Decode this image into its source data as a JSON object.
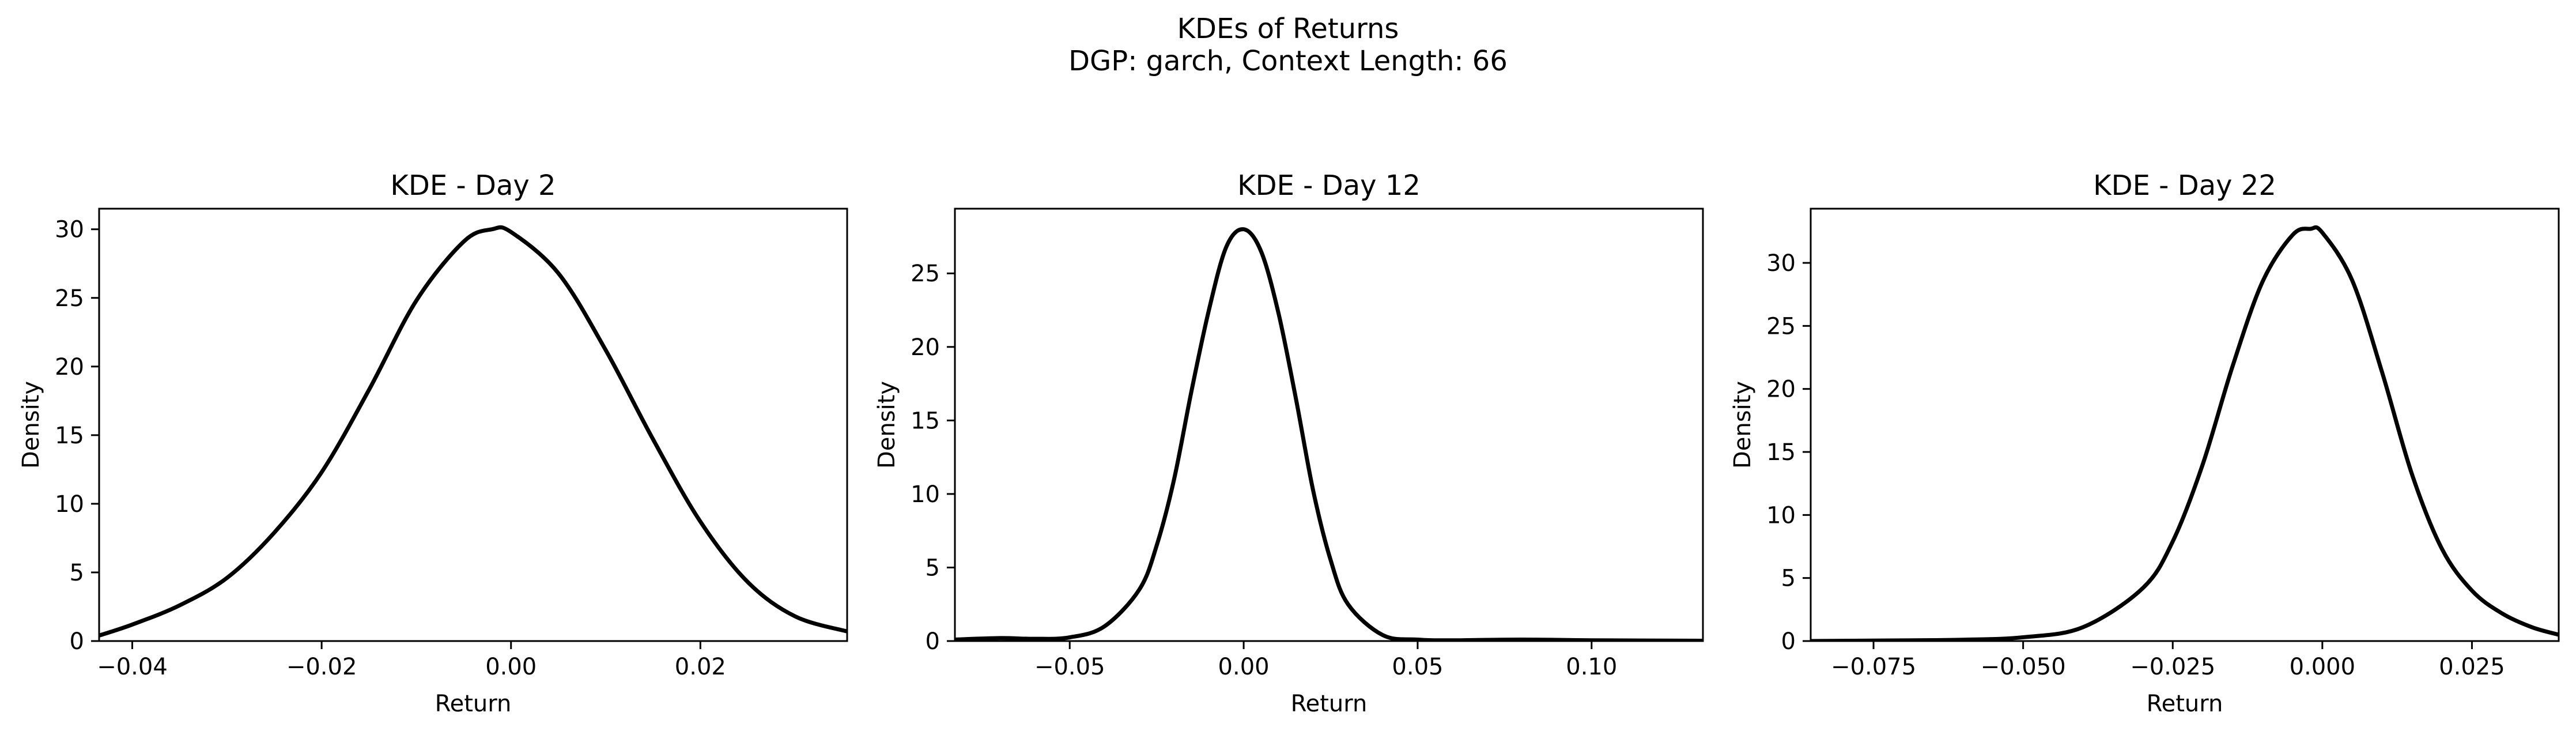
{
  "figure": {
    "title_line1": "KDEs of Returns",
    "title_line2": "DGP: garch, Context Length: 66"
  },
  "chart_data": [
    {
      "type": "line",
      "title": "KDE - Day 2",
      "xlabel": "Return",
      "ylabel": "Density",
      "xlim": [
        -0.0435,
        0.0355
      ],
      "ylim": [
        0,
        31.5
      ],
      "xticks": [
        -0.04,
        -0.02,
        0.0,
        0.02
      ],
      "xtick_labels": [
        "−0.04",
        "−0.02",
        "0.00",
        "0.02"
      ],
      "yticks": [
        0,
        5,
        10,
        15,
        20,
        25,
        30
      ],
      "ytick_labels": [
        "0",
        "5",
        "10",
        "15",
        "20",
        "25",
        "30"
      ],
      "series": [
        {
          "x": [
            -0.0435,
            -0.04,
            -0.035,
            -0.03,
            -0.025,
            -0.02,
            -0.015,
            -0.01,
            -0.005,
            -0.002,
            0.0,
            0.005,
            0.01,
            0.015,
            0.02,
            0.025,
            0.03,
            0.0355
          ],
          "y": [
            0.4,
            1.2,
            2.6,
            4.6,
            7.9,
            12.3,
            18.3,
            24.8,
            29.1,
            30.0,
            29.8,
            26.8,
            21.2,
            14.7,
            8.7,
            4.3,
            1.8,
            0.7
          ]
        }
      ]
    },
    {
      "type": "line",
      "title": "KDE - Day 12",
      "xlabel": "Return",
      "ylabel": "Density",
      "xlim": [
        -0.083,
        0.132
      ],
      "ylim": [
        0,
        29.4
      ],
      "xticks": [
        -0.05,
        0.0,
        0.05,
        0.1
      ],
      "xtick_labels": [
        "−0.05",
        "0.00",
        "0.05",
        "0.10"
      ],
      "yticks": [
        0,
        5,
        10,
        15,
        20,
        25
      ],
      "ytick_labels": [
        "0",
        "5",
        "10",
        "15",
        "20",
        "25"
      ],
      "series": [
        {
          "x": [
            -0.083,
            -0.07,
            -0.06,
            -0.05,
            -0.04,
            -0.03,
            -0.025,
            -0.02,
            -0.015,
            -0.01,
            -0.005,
            0.0,
            0.005,
            0.01,
            0.015,
            0.02,
            0.025,
            0.03,
            0.04,
            0.05,
            0.06,
            0.08,
            0.1,
            0.132
          ],
          "y": [
            0.1,
            0.2,
            0.15,
            0.25,
            1.0,
            3.5,
            6.5,
            11.0,
            17.0,
            22.5,
            26.8,
            28.0,
            26.5,
            22.3,
            16.5,
            10.2,
            5.5,
            2.5,
            0.4,
            0.1,
            0.05,
            0.1,
            0.05,
            0.02
          ]
        }
      ]
    },
    {
      "type": "line",
      "title": "KDE - Day 22",
      "xlabel": "Return",
      "ylabel": "Density",
      "xlim": [
        -0.0855,
        0.0395
      ],
      "ylim": [
        0,
        34.3
      ],
      "xticks": [
        -0.075,
        -0.05,
        -0.025,
        0.0,
        0.025
      ],
      "xtick_labels": [
        "−0.075",
        "−0.050",
        "−0.025",
        "0.000",
        "0.025"
      ],
      "yticks": [
        0,
        5,
        10,
        15,
        20,
        25,
        30
      ],
      "ytick_labels": [
        "0",
        "5",
        "10",
        "15",
        "20",
        "25",
        "30"
      ],
      "series": [
        {
          "x": [
            -0.0855,
            -0.07,
            -0.06,
            -0.05,
            -0.04,
            -0.03,
            -0.025,
            -0.02,
            -0.015,
            -0.01,
            -0.005,
            -0.002,
            0.0,
            0.005,
            0.01,
            0.015,
            0.02,
            0.025,
            0.03,
            0.035,
            0.0395
          ],
          "y": [
            0.0,
            0.05,
            0.1,
            0.3,
            1.1,
            4.2,
            7.9,
            14.0,
            21.8,
            28.5,
            32.2,
            32.7,
            32.4,
            28.6,
            21.3,
            13.2,
            7.3,
            4.0,
            2.2,
            1.1,
            0.5
          ]
        }
      ]
    }
  ]
}
